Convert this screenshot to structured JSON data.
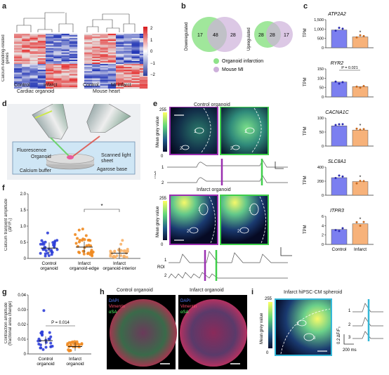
{
  "panels": {
    "a": {
      "letter": "a",
      "ylabel": "Calcium-handling-related genes",
      "groups_left": [
        "Control",
        "Infarct"
      ],
      "title_left": "Cardiac organoid",
      "groups_right": [
        "Control",
        "MI infarct"
      ],
      "title_right": "Mouse heart",
      "scale_ticks": [
        "2",
        "1",
        "0",
        "−1",
        "−2"
      ]
    },
    "b": {
      "letter": "b",
      "down_label": "Downregulated",
      "up_label": "Upregulated",
      "down_left": "17",
      "down_mid": "48",
      "down_right": "28",
      "up_left": "28",
      "up_mid": "28",
      "up_right": "17",
      "legend_green": "Organoid infarction",
      "legend_purple": "Mouse MI",
      "color_green": "#7ee07a",
      "color_purple": "#c9a6d6"
    },
    "c": {
      "letter": "c",
      "ylabel": "TPM",
      "genes": [
        {
          "name": "ATP2A2",
          "ticks": [
            "1,500",
            "1,000",
            "500",
            "0"
          ],
          "control": 950,
          "infarct": 580,
          "max": 1500,
          "star": "*"
        },
        {
          "name": "RYR2",
          "ticks": [
            "150",
            "100",
            "50",
            "0"
          ],
          "control": 80,
          "infarct": 55,
          "max": 150,
          "pval": "P = 0.021"
        },
        {
          "name": "CACNA1C",
          "ticks": [
            "100",
            "50",
            "0"
          ],
          "control": 72,
          "infarct": 57,
          "max": 100,
          "star": "*"
        },
        {
          "name": "SLC8A1",
          "ticks": [
            "400",
            "200",
            "0"
          ],
          "control": 250,
          "infarct": 195,
          "max": 400,
          "star": "*"
        },
        {
          "name": "ITPR3",
          "ticks": [
            "6",
            "4",
            "2",
            "0"
          ],
          "control": 3.2,
          "infarct": 4.4,
          "max": 6,
          "star": "*"
        }
      ],
      "xcats": [
        "Control",
        "Infarct"
      ],
      "color_control": "#7b7ff0",
      "color_infarct": "#f7b27a"
    },
    "d": {
      "letter": "d",
      "labels": [
        "Fluorescence",
        "Organoid",
        "Calcium buffer",
        "Scanned light sheet",
        "Agarose base"
      ]
    },
    "e": {
      "letter": "e",
      "control_title": "Control organoid",
      "infarct_title": "Infarct organoid",
      "cbar_top": "255",
      "cbar_bottom": "0",
      "cbar_label": "Mean grey value",
      "roi_label": "ROI",
      "roi1": "1",
      "roi2": "2"
    },
    "f": {
      "letter": "f",
      "ylabel": "Calcium transient amplitude (ΔF/F₀)",
      "ticks": [
        "2.0",
        "1.5",
        "1.0",
        "0.5",
        "0"
      ],
      "categories": [
        "Control organoid",
        "Infarct organoid-edge",
        "Infarct organoid-interior"
      ],
      "means": [
        0.32,
        0.35,
        0.16
      ],
      "star": "*"
    },
    "g": {
      "letter": "g",
      "ylabel": "Contraction amplitude (fractional area change)",
      "ticks": [
        "0.04",
        "0.03",
        "0.02",
        "0.01",
        "0"
      ],
      "categories": [
        "Control organoid",
        "Infarct organoid"
      ],
      "means": [
        0.009,
        0.005
      ],
      "pval": "P = 0.014"
    },
    "h": {
      "letter": "h",
      "control_title": "Control organoid",
      "infarct_title": "Infarct organoid",
      "stains": [
        "DAPI",
        "Vimentin",
        "αSA"
      ]
    },
    "i": {
      "letter": "i",
      "title": "Infarct hiPSC-CM spheroid",
      "cbar_top": "255",
      "cbar_bottom": "0",
      "cbar_label": "Mean grey value",
      "ylab": "0.2 ΔF/F₀",
      "roi_label": "ROI",
      "time": "200 ms",
      "roi1": "1",
      "roi2": "2",
      "roi3": "3"
    }
  }
}
